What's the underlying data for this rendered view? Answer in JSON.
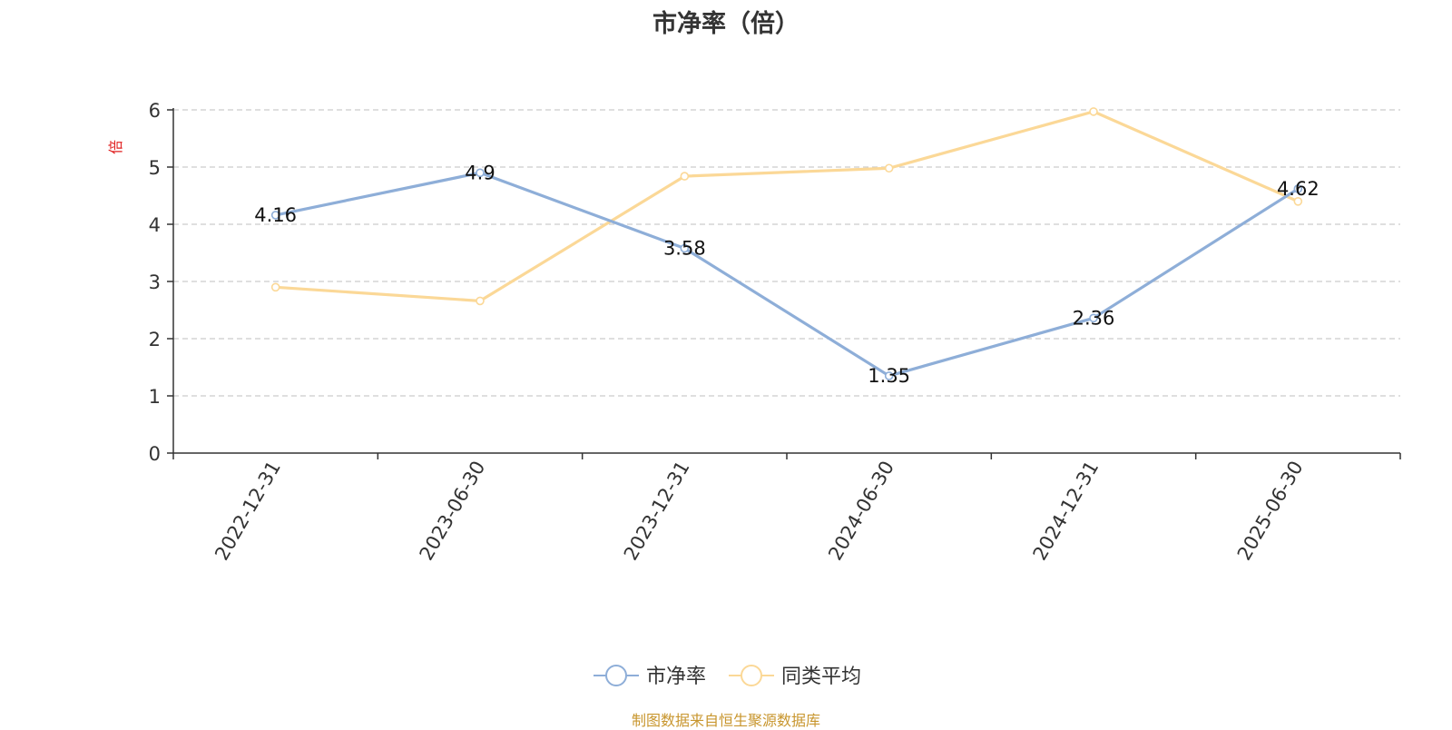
{
  "chart_data": {
    "type": "line",
    "title": "市净率（倍）",
    "ylabel": "倍",
    "xlabel": "",
    "x": [
      "2022-12-31",
      "2023-06-30",
      "2023-12-31",
      "2024-06-30",
      "2024-12-31",
      "2025-06-30"
    ],
    "ylim": [
      0,
      6
    ],
    "yticks": [
      0,
      1,
      2,
      3,
      4,
      5,
      6
    ],
    "grid": true,
    "legend_position": "bottom-center",
    "series": [
      {
        "name": "市净率",
        "color": "#8eaed8",
        "values": [
          4.16,
          4.9,
          3.58,
          1.35,
          2.36,
          4.62
        ],
        "show_labels": true
      },
      {
        "name": "同类平均",
        "color": "#fbd897",
        "values": [
          2.9,
          2.66,
          4.84,
          4.98,
          5.97,
          4.4
        ],
        "show_labels": false
      }
    ]
  },
  "footer": {
    "source": "制图数据来自恒生聚源数据库"
  }
}
